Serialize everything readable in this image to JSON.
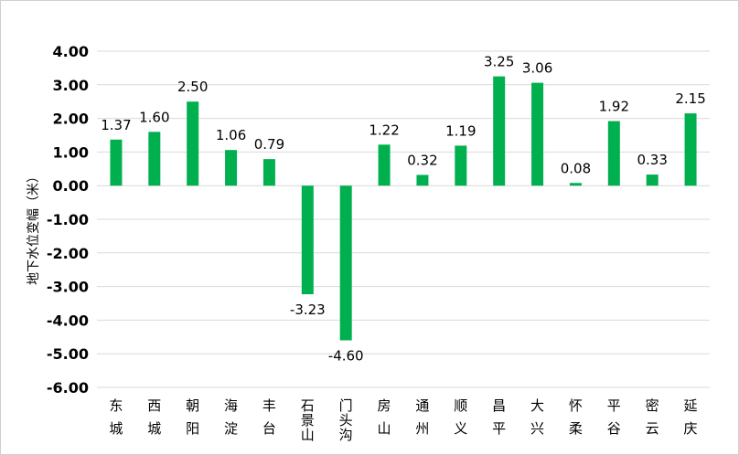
{
  "chart_data": {
    "type": "bar",
    "ylabel": "地下水位变幅（米）",
    "ylim": [
      -6,
      4
    ],
    "y_ticks": [
      "4.00",
      "3.00",
      "2.00",
      "1.00",
      "0.00",
      "-1.00",
      "-2.00",
      "-3.00",
      "-4.00",
      "-5.00",
      "-6.00"
    ],
    "grid": true,
    "bar_color": "#00b04f",
    "categories": [
      "东城",
      "西城",
      "朝阳",
      "海淀",
      "丰台",
      "石景山",
      "门头沟",
      "房山",
      "通州",
      "顺义",
      "昌平",
      "大兴",
      "怀柔",
      "平谷",
      "密云",
      "延庆"
    ],
    "values": [
      1.37,
      1.6,
      2.5,
      1.06,
      0.79,
      -3.23,
      -4.6,
      1.22,
      0.32,
      1.19,
      3.25,
      3.06,
      0.08,
      1.92,
      0.33,
      2.15
    ],
    "data_labels": [
      "1.37",
      "1.60",
      "2.50",
      "1.06",
      "0.79",
      "-3.23",
      "-4.60",
      "1.22",
      "0.32",
      "1.19",
      "3.25",
      "3.06",
      "0.08",
      "1.92",
      "0.33",
      "2.15"
    ]
  }
}
